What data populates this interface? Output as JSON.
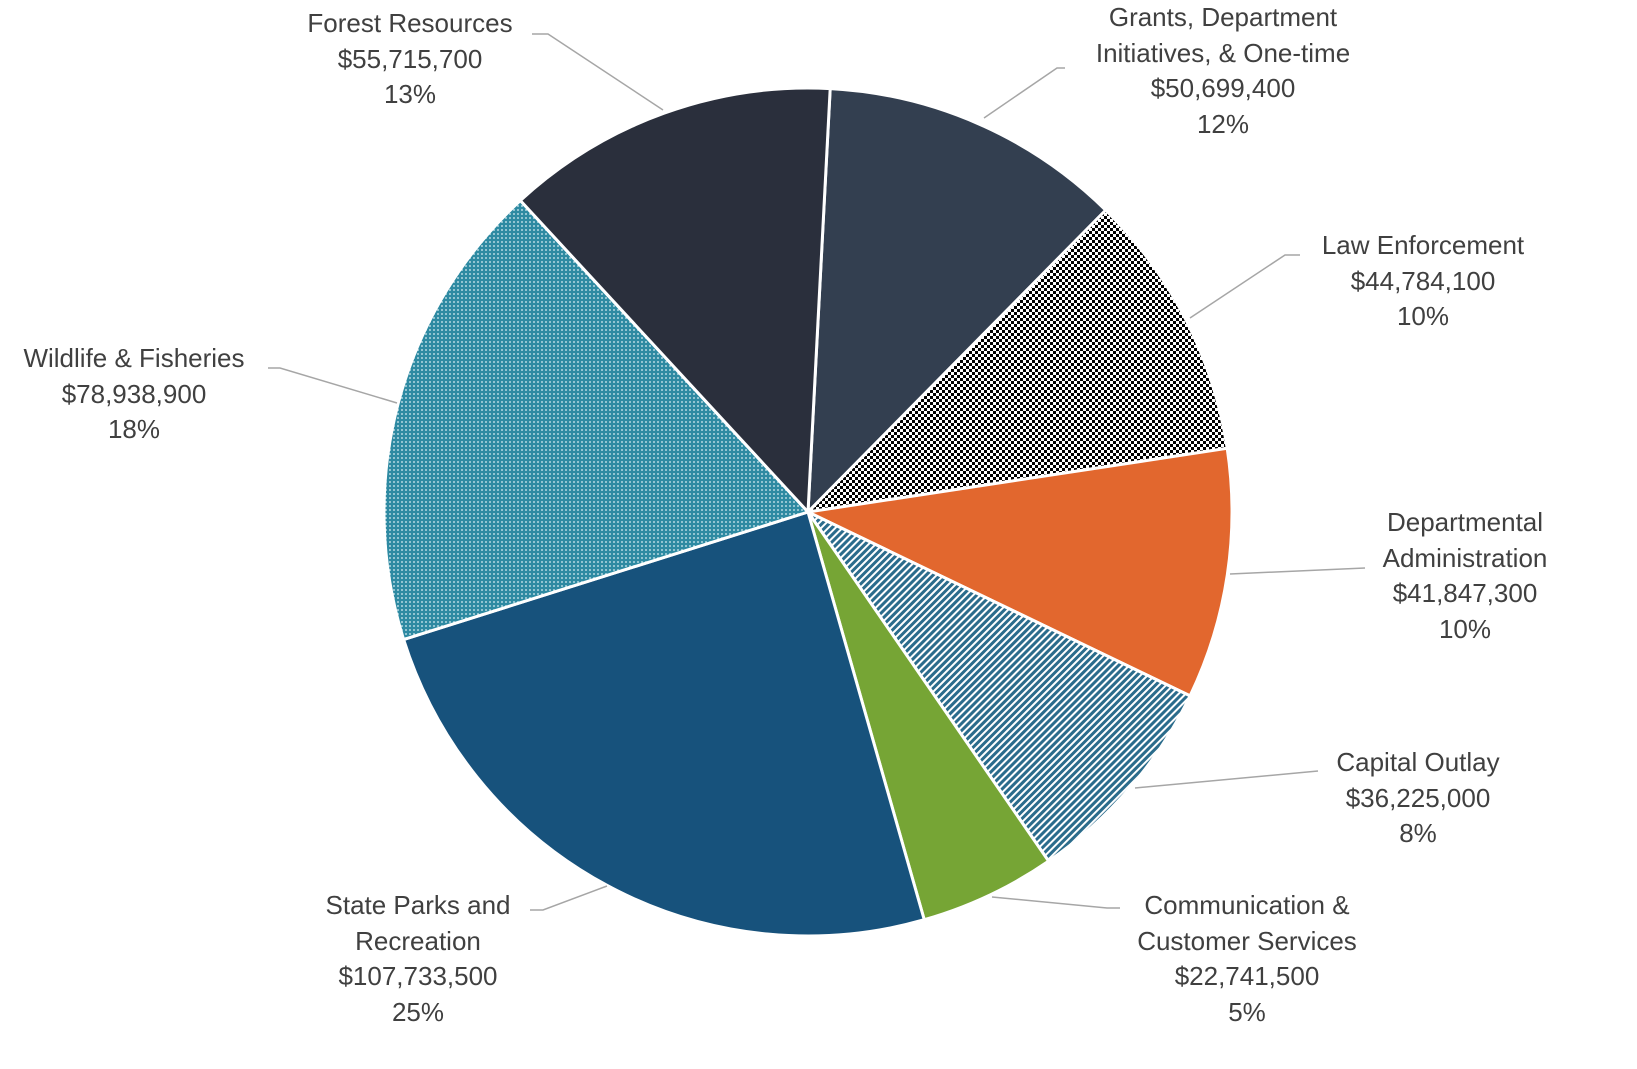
{
  "chart_data": {
    "type": "pie",
    "categories": [
      "Grants, Department Initiatives, & One-time",
      "Law Enforcement",
      "Departmental Administration",
      "Capital Outlay",
      "Communication & Customer Services",
      "State Parks and Recreation",
      "Wildlife & Fisheries",
      "Forest Resources"
    ],
    "values": [
      50699400,
      44784100,
      41847300,
      36225000,
      22741500,
      107733500,
      78938900,
      55715700
    ],
    "value_labels": [
      "$50,699,400",
      "$44,784,100",
      "$41,847,300",
      "$36,225,000",
      "$22,741,500",
      "$107,733,500",
      "$78,938,900",
      "$55,715,700"
    ],
    "percent_labels": [
      "12%",
      "10%",
      "10%",
      "8%",
      "5%",
      "25%",
      "18%",
      "13%"
    ],
    "colors": [
      "#333f50",
      "#000000",
      "#e2672e",
      "#2b6c8c",
      "#76a535",
      "#17527c",
      "#2e8aa2",
      "#2a2f3c"
    ],
    "patterns": [
      "solid",
      "checker",
      "solid",
      "stripes",
      "solid",
      "solid",
      "dots",
      "solid"
    ]
  }
}
